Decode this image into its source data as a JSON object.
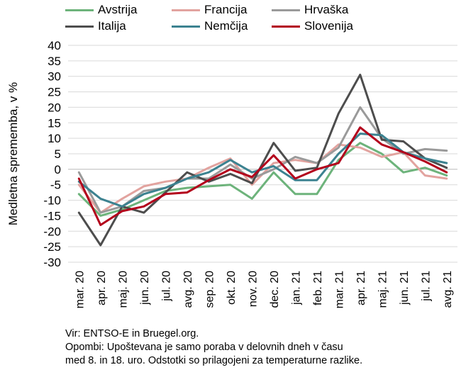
{
  "chart_data": {
    "type": "line",
    "title": "",
    "xlabel": "",
    "ylabel": "Medletna sprememba, v %",
    "ylim": [
      -30,
      40
    ],
    "yticks": [
      40,
      35,
      30,
      25,
      20,
      15,
      10,
      5,
      0,
      -5,
      -10,
      -15,
      -20,
      -25,
      -30
    ],
    "grid": true,
    "legend_position": "top",
    "categories": [
      "mar. 20",
      "apr. 20",
      "maj. 20",
      "jun. 20",
      "jul. 20",
      "avg. 20",
      "sep. 20",
      "okt. 20",
      "nov. 20",
      "dec. 20",
      "jan. 21",
      "feb. 21",
      "mar. 21",
      "apr. 21",
      "maj. 21",
      "jun. 21",
      "jul. 21",
      "avg. 21"
    ],
    "series": [
      {
        "name": "Avstrija",
        "color": "#6db37b",
        "values": [
          -8,
          -15,
          -13,
          -10,
          -7,
          -6,
          -5.5,
          -5,
          -9.5,
          -1,
          -8,
          -8,
          3,
          8.5,
          5,
          -1,
          0.5,
          -2
        ]
      },
      {
        "name": "Francija",
        "color": "#e2a39f",
        "values": [
          -5,
          -14,
          -9.5,
          -5.5,
          -4,
          -3,
          0.5,
          3.5,
          -5,
          2,
          3,
          2,
          8,
          7,
          4,
          5.5,
          -2,
          -3
        ]
      },
      {
        "name": "Hrvaška",
        "color": "#9a9a9a",
        "values": [
          -1,
          -14,
          -12,
          -7,
          -6,
          -3,
          -3,
          1.5,
          -3,
          0,
          4,
          2,
          7,
          20,
          10,
          5,
          6.5,
          6
        ]
      },
      {
        "name": "Italija",
        "color": "#4d4d4d",
        "values": [
          -14,
          -24.5,
          -12,
          -14,
          -7.5,
          -1,
          -4,
          -1.5,
          -4.5,
          8.5,
          -0.5,
          0.5,
          18,
          30.5,
          9.5,
          9,
          3.5,
          0.5
        ]
      },
      {
        "name": "Nemčija",
        "color": "#3c8290",
        "values": [
          -4,
          -9.5,
          -12,
          -8,
          -6,
          -3,
          -1,
          3,
          -1,
          1,
          -3.5,
          -3.5,
          5,
          11.5,
          11,
          5.5,
          3.5,
          2
        ]
      },
      {
        "name": "Slovenija",
        "color": "#b3001b",
        "values": [
          -3,
          -18,
          -13.5,
          -12,
          -8,
          -7.5,
          -3.5,
          0,
          -2.5,
          4.5,
          -3,
          0,
          2,
          13.5,
          8,
          5.5,
          2.5,
          -1
        ]
      }
    ]
  },
  "source": {
    "line1": "Vir: ENTSO-E in Bruegel.org.",
    "line2": "Opombi: Upoštevana je samo poraba v delovnih dneh v času",
    "line3": "med 8. in 18. uro. Odstotki so prilagojeni za temperaturne razlike."
  }
}
